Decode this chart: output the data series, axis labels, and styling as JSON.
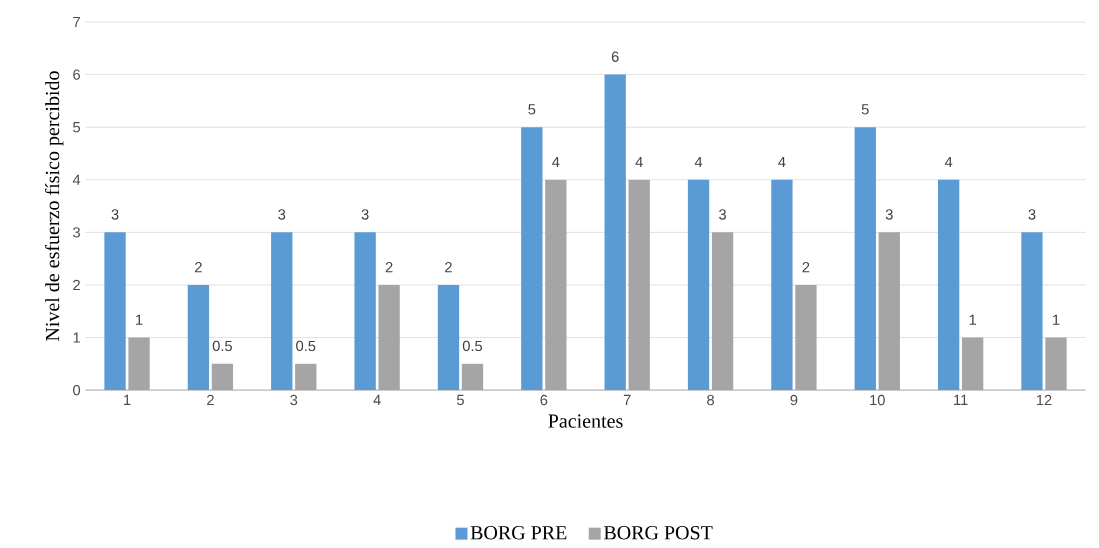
{
  "chart_data": {
    "type": "bar",
    "xlabel": "Pacientes",
    "ylabel": "Nivel de esfuerzo físico percibido",
    "categories": [
      "1",
      "2",
      "3",
      "4",
      "5",
      "6",
      "7",
      "8",
      "9",
      "10",
      "11",
      "12"
    ],
    "series": [
      {
        "name": "BORG PRE",
        "color": "#5b9bd5",
        "values": [
          3,
          2,
          3,
          3,
          2,
          5,
          6,
          4,
          4,
          5,
          4,
          3
        ]
      },
      {
        "name": "BORG POST",
        "color": "#a5a5a5",
        "values": [
          1,
          0.5,
          0.5,
          2,
          0.5,
          4,
          4,
          3,
          2,
          3,
          1,
          1
        ]
      }
    ],
    "ylim": [
      0,
      7
    ],
    "yticks": [
      0,
      1,
      2,
      3,
      4,
      5,
      6,
      7
    ],
    "grid": "y",
    "legend": "bottom",
    "data_labels": true
  }
}
